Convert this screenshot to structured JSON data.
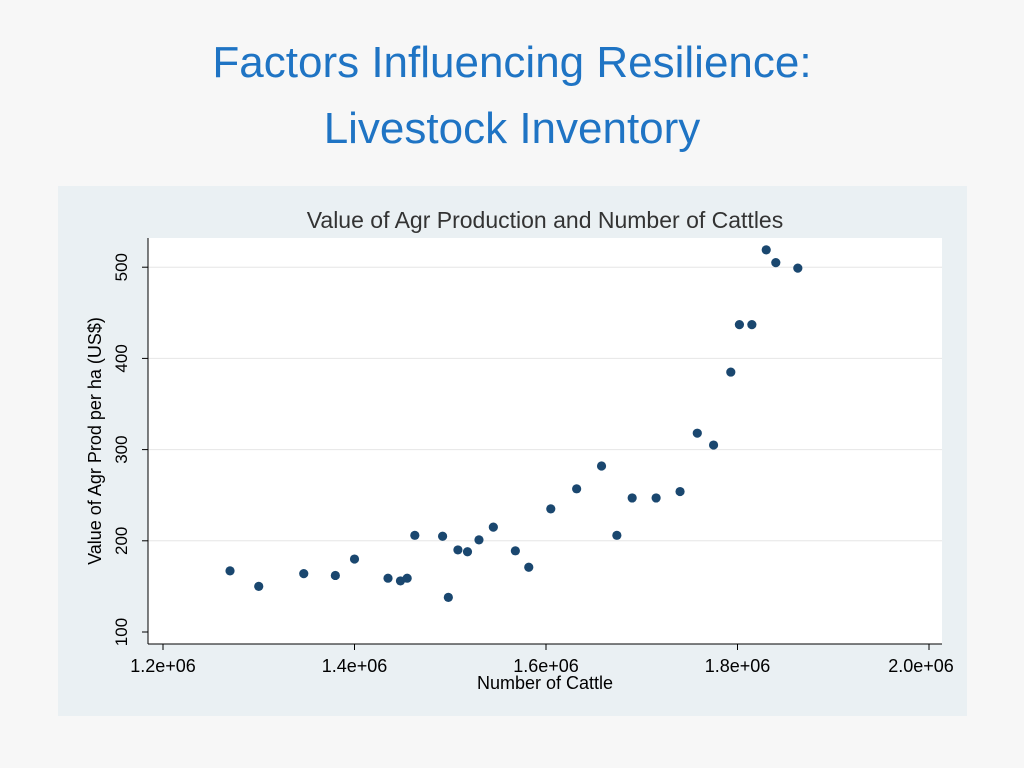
{
  "slide": {
    "title_line1": "Factors Influencing Resilience:",
    "title_line2": "Livestock Inventory"
  },
  "colors": {
    "title": "#1f74c4",
    "panel_background": "#eaf0f3",
    "plot_background": "#ffffff",
    "marker": "#1a476f",
    "gridline": "#e6e6e6",
    "text": "#000000"
  },
  "chart_data": {
    "type": "scatter",
    "title": "Value of Agr Production and Number of Cattles",
    "xlabel": "Number of Cattle",
    "ylabel": "Value of Agr Prod per ha (US$)",
    "xlim": [
      1200000,
      2000000
    ],
    "ylim": [
      100,
      530
    ],
    "xticks": [
      1200000,
      1400000,
      1600000,
      1800000,
      2000000
    ],
    "xtick_labels": [
      "1.2e+06",
      "1.4e+06",
      "1.6e+06",
      "1.8e+06",
      "2.0e+06"
    ],
    "yticks": [
      100,
      200,
      300,
      400,
      500
    ],
    "ytick_labels": [
      "100",
      "200",
      "300",
      "400",
      "500"
    ],
    "grid": "horizontal",
    "legend": "none",
    "points": [
      {
        "x": 1270000,
        "y": 167
      },
      {
        "x": 1300000,
        "y": 150
      },
      {
        "x": 1347000,
        "y": 164
      },
      {
        "x": 1380000,
        "y": 162
      },
      {
        "x": 1400000,
        "y": 180
      },
      {
        "x": 1435000,
        "y": 159
      },
      {
        "x": 1448000,
        "y": 156
      },
      {
        "x": 1455000,
        "y": 159
      },
      {
        "x": 1463000,
        "y": 206
      },
      {
        "x": 1492000,
        "y": 205
      },
      {
        "x": 1498000,
        "y": 138
      },
      {
        "x": 1508000,
        "y": 190
      },
      {
        "x": 1518000,
        "y": 188
      },
      {
        "x": 1530000,
        "y": 201
      },
      {
        "x": 1545000,
        "y": 215
      },
      {
        "x": 1568000,
        "y": 189
      },
      {
        "x": 1582000,
        "y": 171
      },
      {
        "x": 1605000,
        "y": 235
      },
      {
        "x": 1632000,
        "y": 257
      },
      {
        "x": 1658000,
        "y": 282
      },
      {
        "x": 1674000,
        "y": 206
      },
      {
        "x": 1690000,
        "y": 247
      },
      {
        "x": 1715000,
        "y": 247
      },
      {
        "x": 1740000,
        "y": 254
      },
      {
        "x": 1758000,
        "y": 318
      },
      {
        "x": 1775000,
        "y": 305
      },
      {
        "x": 1793000,
        "y": 385
      },
      {
        "x": 1802000,
        "y": 437
      },
      {
        "x": 1815000,
        "y": 437
      },
      {
        "x": 1830000,
        "y": 519
      },
      {
        "x": 1840000,
        "y": 505
      },
      {
        "x": 1863000,
        "y": 499
      }
    ]
  }
}
